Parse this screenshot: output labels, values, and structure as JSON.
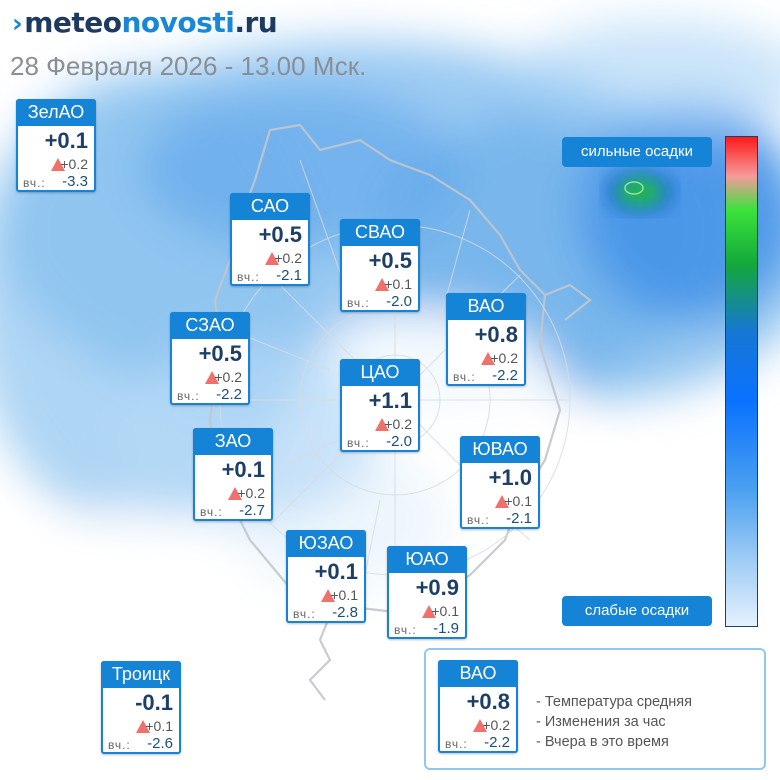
{
  "brand": {
    "mark": "›",
    "part1": "meteo",
    "part2": "novosti",
    "part3": ".ru"
  },
  "subtitle": "28 Февраля 2026 - 13.00 Мск.",
  "districts": [
    {
      "name": "ЗелАО",
      "temp": "+0.1",
      "change": "+0.2",
      "yest_label": "вч.:",
      "yesterday": "-3.3"
    },
    {
      "name": "САО",
      "temp": "+0.5",
      "change": "+0.2",
      "yest_label": "вч.:",
      "yesterday": "-2.1"
    },
    {
      "name": "СВАО",
      "temp": "+0.5",
      "change": "+0.1",
      "yest_label": "вч.:",
      "yesterday": "-2.0"
    },
    {
      "name": "ВАО",
      "temp": "+0.8",
      "change": "+0.2",
      "yest_label": "вч.:",
      "yesterday": "-2.2"
    },
    {
      "name": "СЗАО",
      "temp": "+0.5",
      "change": "+0.2",
      "yest_label": "вч.:",
      "yesterday": "-2.2"
    },
    {
      "name": "ЦАО",
      "temp": "+1.1",
      "change": "+0.2",
      "yest_label": "вч.:",
      "yesterday": "-2.0"
    },
    {
      "name": "ЗАО",
      "temp": "+0.1",
      "change": "+0.2",
      "yest_label": "вч.:",
      "yesterday": "-2.7"
    },
    {
      "name": "ЮВАО",
      "temp": "+1.0",
      "change": "+0.1",
      "yest_label": "вч.:",
      "yesterday": "-2.1"
    },
    {
      "name": "ЮЗАО",
      "temp": "+0.1",
      "change": "+0.1",
      "yest_label": "вч.:",
      "yesterday": "-2.8"
    },
    {
      "name": "ЮАО",
      "temp": "+0.9",
      "change": "+0.1",
      "yest_label": "вч.:",
      "yesterday": "-1.9"
    },
    {
      "name": "Троицк",
      "temp": "-0.1",
      "change": "+0.1",
      "yest_label": "вч.:",
      "yesterday": "-2.6"
    }
  ],
  "precip_scale": {
    "high_label": "сильные осадки",
    "low_label": "слабые осадки",
    "colors": [
      "#ff1a1a",
      "#3ae23a",
      "#14a83b",
      "#1677d6",
      "#0a72ff",
      "#9ccaf5",
      "#e4f1fd"
    ]
  },
  "legend": {
    "sample": {
      "name": "ВАО",
      "temp": "+0.8",
      "change": "+0.2",
      "yest_label": "вч.:",
      "yesterday": "-2.2"
    },
    "lines": [
      "- Температура средняя",
      "- Изменения за час",
      "- Вчера в это время"
    ]
  },
  "colors": {
    "accent": "#1583d6",
    "temp_text": "#1d3f66",
    "rise_triangle": "#f0716b"
  }
}
